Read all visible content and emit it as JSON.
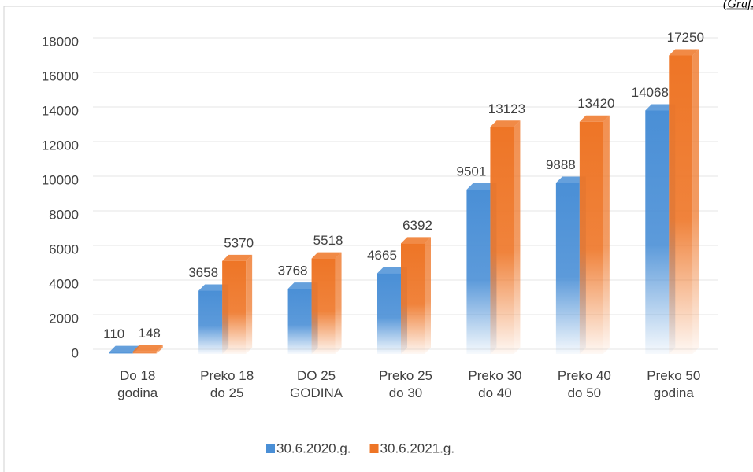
{
  "chart_data": {
    "type": "bar3d",
    "corner_note": "(Graf.",
    "categories": [
      "Do 18\ngodina",
      "Preko 18\ndo 25",
      "DO 25\nGODINA",
      "Preko 25\ndo 30",
      "Preko 30\ndo 40",
      "Preko 40\ndo 50",
      "Preko 50\ngodina"
    ],
    "series": [
      {
        "name": "30.6.2020.g.",
        "color": "#4a8fd6",
        "values": [
          110,
          3658,
          3768,
          4665,
          9501,
          9888,
          14068
        ]
      },
      {
        "name": "30.6.2021.g.",
        "color": "#ee7526",
        "values": [
          148,
          5370,
          5518,
          6392,
          13123,
          13420,
          17250
        ]
      }
    ],
    "ylim": [
      0,
      18000
    ],
    "yticks": [
      0,
      2000,
      4000,
      6000,
      8000,
      10000,
      12000,
      14000,
      16000,
      18000
    ],
    "grid": true,
    "legend": "bottom"
  }
}
